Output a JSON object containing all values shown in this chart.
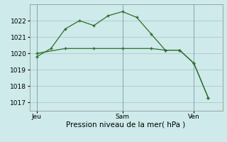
{
  "line1_x": [
    0,
    1,
    2,
    3,
    4,
    5,
    6,
    7,
    8,
    9,
    10,
    11,
    12
  ],
  "line1_y": [
    1019.8,
    1020.3,
    1021.5,
    1022.0,
    1021.7,
    1022.3,
    1022.55,
    1022.2,
    1021.2,
    1020.2,
    1020.2,
    1019.4,
    1017.3
  ],
  "line2_x": [
    0,
    2,
    4,
    6,
    8,
    9,
    10,
    11,
    12
  ],
  "line2_y": [
    1020.0,
    1020.3,
    1020.3,
    1020.3,
    1020.3,
    1020.2,
    1020.2,
    1019.4,
    1017.3
  ],
  "line_color": "#2d6e2d",
  "bg_color": "#ceeaea",
  "grid_color": "#b0c8c8",
  "ylim": [
    1016.5,
    1023.0
  ],
  "yticks": [
    1017,
    1018,
    1019,
    1020,
    1021,
    1022
  ],
  "xtick_labels": [
    "Jeu",
    "Sam",
    "Ven",
    ""
  ],
  "jeu_x": 0,
  "sam_x": 6,
  "ven_x": 11,
  "xlabel": "Pression niveau de la mer( hPa )",
  "xlabel_fontsize": 7.5,
  "ytick_fontsize": 6.5,
  "xtick_fontsize": 6.5,
  "vline_x": [
    0,
    6,
    11
  ],
  "xlim": [
    -0.5,
    13
  ]
}
